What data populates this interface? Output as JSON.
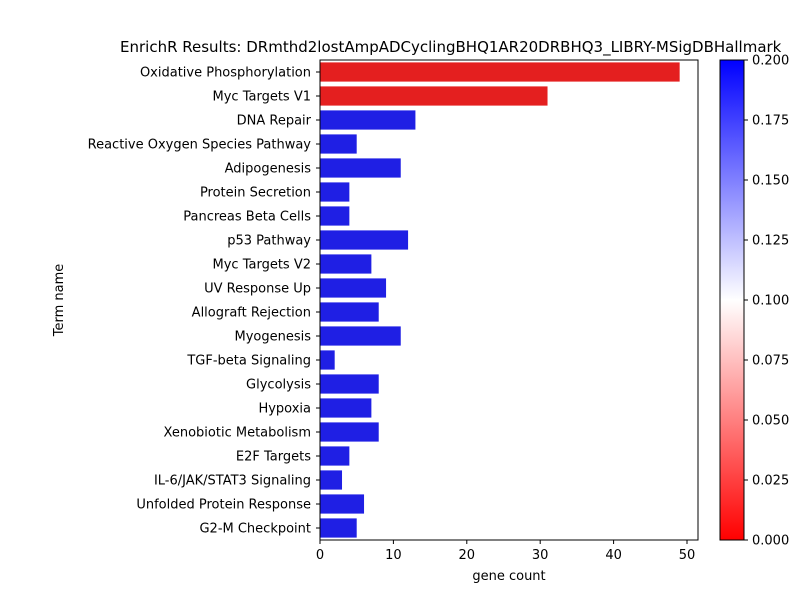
{
  "chart_data": {
    "type": "bar",
    "orientation": "horizontal",
    "title": "EnrichR Results: DRmthd2lostAmpADCyclingBHQ1AR20DRBHQ3_LIBRY-MSigDBHallmark",
    "xlabel": "gene count",
    "ylabel": "Term name",
    "xlim": [
      0,
      51.5
    ],
    "xticks": [
      0,
      10,
      20,
      30,
      40,
      50
    ],
    "categories": [
      "Oxidative Phosphorylation",
      "Myc Targets V1",
      "DNA Repair",
      "Reactive Oxygen Species Pathway",
      "Adipogenesis",
      "Protein Secretion",
      "Pancreas Beta Cells",
      "p53 Pathway",
      "Myc Targets V2",
      "UV Response Up",
      "Allograft Rejection",
      "Myogenesis",
      "TGF-beta Signaling",
      "Glycolysis",
      "Hypoxia",
      "Xenobiotic Metabolism",
      "E2F Targets",
      "IL-6/JAK/STAT3 Signaling",
      "Unfolded Protein Response",
      "G2-M Checkpoint"
    ],
    "values": [
      49,
      31,
      13,
      5,
      11,
      4,
      4,
      12,
      7,
      9,
      8,
      11,
      2,
      8,
      7,
      8,
      4,
      3,
      6,
      5
    ],
    "bar_colors": [
      "#e41f1f",
      "#e41f1f",
      "#1f1fe4",
      "#1f1fe4",
      "#1f1fe4",
      "#1f1fe4",
      "#1f1fe4",
      "#1f1fe4",
      "#1f1fe4",
      "#1f1fe4",
      "#1f1fe4",
      "#1f1fe4",
      "#1f1fe4",
      "#1f1fe4",
      "#1f1fe4",
      "#1f1fe4",
      "#1f1fe4",
      "#1f1fe4",
      "#1f1fe4",
      "#1f1fe4"
    ],
    "colorbar": {
      "range": [
        0.0,
        0.2
      ],
      "ticks": [
        "0.000",
        "0.025",
        "0.050",
        "0.075",
        "0.100",
        "0.125",
        "0.150",
        "0.175",
        "0.200"
      ],
      "colors": [
        "#ff0000",
        "#ffffff",
        "#0000ff"
      ]
    },
    "grid": false,
    "legend": "none"
  }
}
